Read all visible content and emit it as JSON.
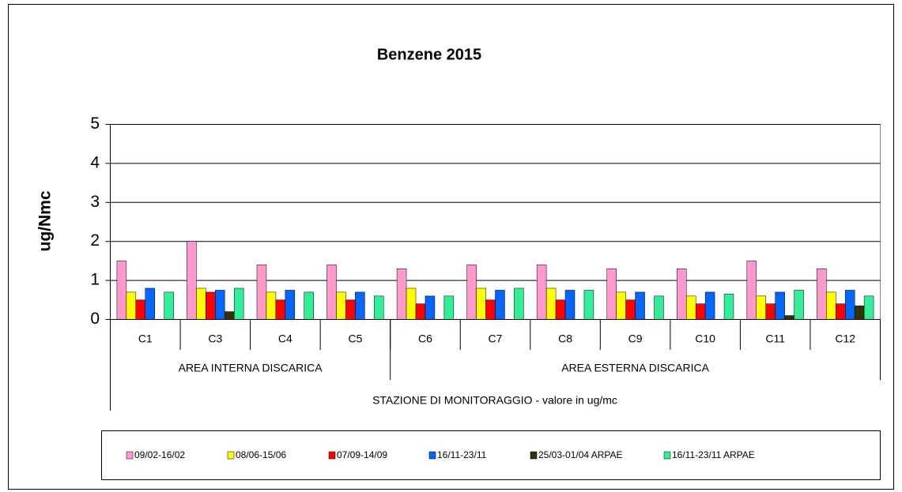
{
  "chart_data": {
    "type": "bar",
    "title": "Benzene 2015",
    "y_label": "ug/Nmc",
    "x_label": "STAZIONE DI MONITORAGGIO - valore in ug/mc",
    "groups": [
      {
        "name": "AREA INTERNA DISCARICA",
        "categories": [
          "C1",
          "C3",
          "C4",
          "C5"
        ]
      },
      {
        "name": "AREA ESTERNA DISCARICA",
        "categories": [
          "C6",
          "C7",
          "C8",
          "C9",
          "C10",
          "C11",
          "C12"
        ]
      }
    ],
    "series": [
      {
        "name": "09/02-16/02",
        "color": "#ff99cc",
        "values": [
          1.5,
          2.0,
          1.4,
          1.4,
          1.3,
          1.4,
          1.4,
          1.3,
          1.3,
          1.5,
          1.3
        ]
      },
      {
        "name": "08/06-15/06",
        "color": "#ffff00",
        "values": [
          0.7,
          0.8,
          0.7,
          0.7,
          0.8,
          0.8,
          0.8,
          0.7,
          0.6,
          0.6,
          0.7
        ]
      },
      {
        "name": "07/09-14/09",
        "color": "#ff0000",
        "values": [
          0.5,
          0.7,
          0.5,
          0.5,
          0.4,
          0.5,
          0.5,
          0.5,
          0.4,
          0.4,
          0.4
        ]
      },
      {
        "name": "16/11-23/11",
        "color": "#0066ff",
        "values": [
          0.8,
          0.75,
          0.75,
          0.7,
          0.6,
          0.75,
          0.75,
          0.7,
          0.7,
          0.7,
          0.75
        ]
      },
      {
        "name": "25/03-01/04 ARPAE",
        "color": "#333300",
        "values": [
          null,
          0.2,
          null,
          null,
          null,
          null,
          null,
          null,
          null,
          0.1,
          0.35
        ]
      },
      {
        "name": "16/11-23/11 ARPAE",
        "color": "#33ee99",
        "values": [
          0.7,
          0.8,
          0.7,
          0.6,
          0.6,
          0.8,
          0.75,
          0.6,
          0.65,
          0.75,
          0.6
        ]
      }
    ],
    "ylim": [
      0,
      5
    ],
    "yticks": [
      0,
      1,
      2,
      3,
      4,
      5
    ],
    "grid": true,
    "legend": "bottom"
  }
}
